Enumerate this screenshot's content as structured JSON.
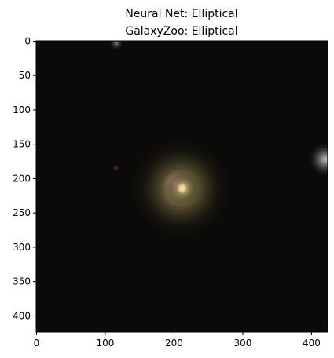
{
  "chart_data": {
    "type": "image",
    "title": [
      "Neural Net: Elliptical",
      "GalaxyZoo: Elliptical"
    ],
    "xlim": [
      -0.5,
      423.5
    ],
    "xticks": [
      0,
      100,
      200,
      300,
      400
    ],
    "ylim": [
      423.5,
      -0.5
    ],
    "yticks": [
      0,
      50,
      100,
      150,
      200,
      250,
      300,
      350,
      400
    ]
  }
}
